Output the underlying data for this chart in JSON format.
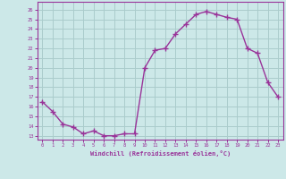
{
  "x": [
    0,
    1,
    2,
    3,
    4,
    5,
    6,
    7,
    8,
    9,
    10,
    11,
    12,
    13,
    14,
    15,
    16,
    17,
    18,
    19,
    20,
    21,
    22,
    23
  ],
  "y": [
    16.5,
    15.5,
    14.2,
    13.9,
    13.2,
    13.5,
    13.0,
    13.0,
    13.2,
    13.2,
    20.0,
    21.8,
    22.0,
    23.5,
    24.5,
    25.5,
    25.8,
    25.5,
    25.2,
    25.0,
    22.0,
    21.5,
    18.5,
    17.0
  ],
  "line_color": "#993399",
  "marker": "+",
  "bg_color": "#cce8e8",
  "grid_color": "#aacccc",
  "xlabel": "Windchill (Refroidissement éolien,°C)",
  "ylabel_ticks": [
    13,
    14,
    15,
    16,
    17,
    18,
    19,
    20,
    21,
    22,
    23,
    24,
    25,
    26
  ],
  "ylim": [
    12.6,
    26.8
  ],
  "xlim": [
    -0.5,
    23.5
  ],
  "tick_color": "#993399",
  "label_color": "#993399"
}
